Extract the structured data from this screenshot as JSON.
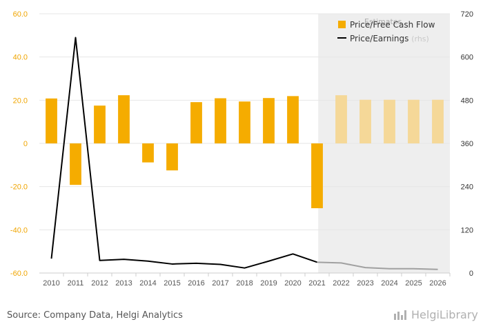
{
  "chart_data": {
    "type": "bar",
    "categories": [
      "2010",
      "2011",
      "2012",
      "2013",
      "2014",
      "2015",
      "2016",
      "2017",
      "2018",
      "2019",
      "2020",
      "2021",
      "2022",
      "2023",
      "2024",
      "2025",
      "2026"
    ],
    "estimate_start_index": 12,
    "estimates_label": "Estimates",
    "series": [
      {
        "name": "Price/Free Cash Flow",
        "type": "bar",
        "axis": "left",
        "color": "#f5ac00",
        "estimate_color": "#f5d898",
        "values": [
          20.8,
          -19.2,
          17.5,
          22.3,
          -8.8,
          -12.5,
          19.1,
          20.9,
          19.4,
          21.0,
          21.9,
          -30.0,
          22.3,
          20.2,
          20.2,
          20.2,
          20.2
        ]
      },
      {
        "name": "Price/Earnings",
        "name_suffix": "(rhs)",
        "type": "line",
        "axis": "right",
        "color": "#000000",
        "estimate_color": "#a0a0a0",
        "values": [
          40,
          654,
          35,
          38,
          33,
          25,
          27,
          24,
          14,
          33,
          53,
          30,
          28,
          15,
          12,
          12,
          10
        ]
      }
    ],
    "y_left": {
      "min": -60,
      "max": 60,
      "ticks": [
        "-60.0",
        "-40.0",
        "-20.0",
        "0",
        "20.0",
        "40.0",
        "60.0"
      ],
      "tick_values": [
        -60,
        -40,
        -20,
        0,
        20,
        40,
        60
      ],
      "color": "#f0a500"
    },
    "y_right": {
      "min": 0,
      "max": 720,
      "ticks": [
        "0",
        "120",
        "240",
        "360",
        "480",
        "600",
        "720"
      ],
      "tick_values": [
        0,
        120,
        240,
        360,
        480,
        600,
        720
      ]
    },
    "grid": true,
    "legend_position": "top-right"
  },
  "footer": {
    "source": "Source: Company Data, Helgi Analytics",
    "brand": "HelgiLibrary"
  }
}
